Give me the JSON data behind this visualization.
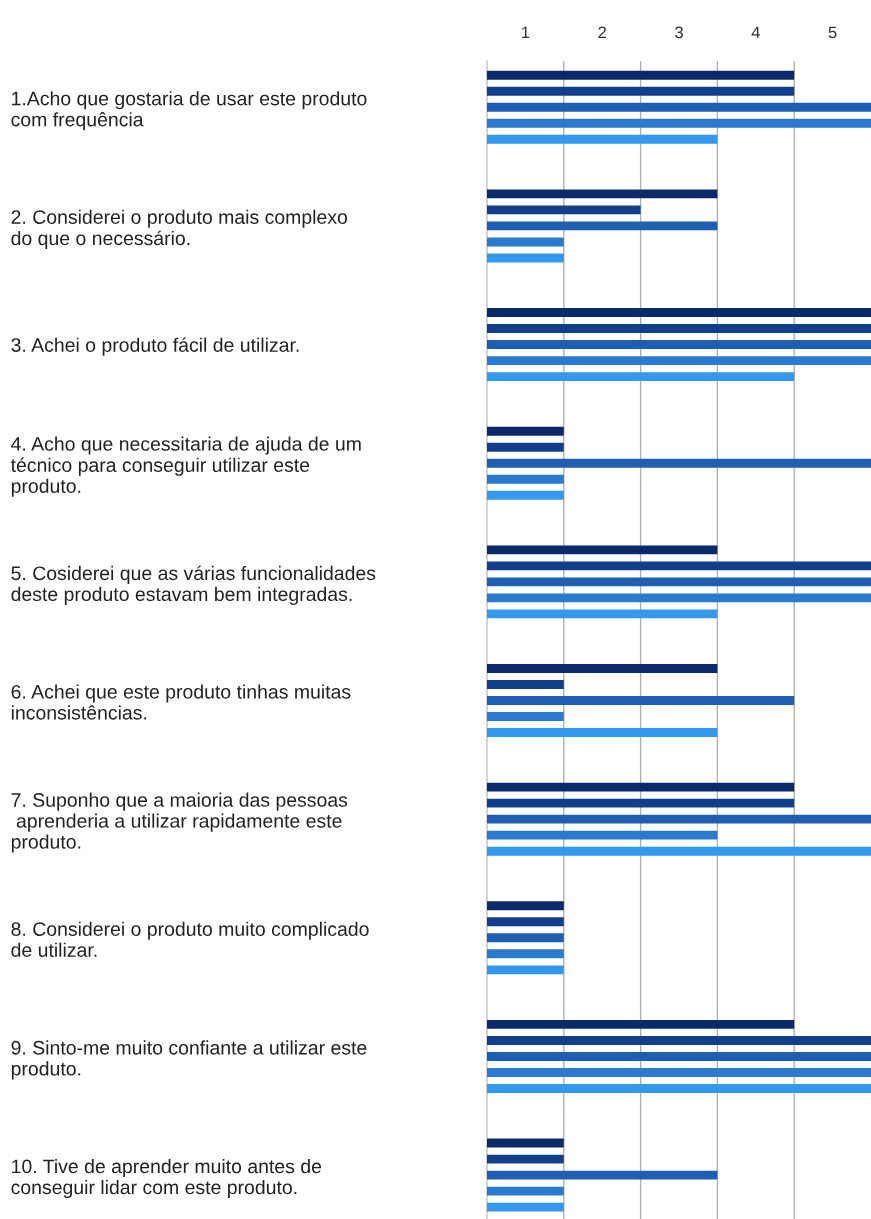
{
  "chart_data": {
    "type": "bar",
    "orientation": "horizontal",
    "categories": [
      "1.Acho que gostaria de usar este produto\ncom frequência",
      "2. Considerei o produto mais complexo\ndo que o necessário.",
      "3. Achei o produto fácil de utilizar.",
      "4. Acho que necessitaria de ajuda de um\ntécnico para conseguir utilizar este\nproduto.",
      "5. Cosiderei que as várias funcionalidades\ndeste produto estavam bem integradas.",
      "6. Achei que este produto tinhas muitas\ninconsistências.",
      "7. Suponho que a maioria das pessoas\n aprenderia a utilizar rapidamente este\nproduto.",
      "8. Considerei o produto muito complicado\nde utilizar.",
      "9. Sinto-me muito confiante a utilizar este\nproduto.",
      "10. Tive de aprender muito antes de\nconseguir lidar com este produto."
    ],
    "series": [
      {
        "color": "#0b2a6b",
        "values": [
          4,
          3,
          5,
          1,
          3,
          3,
          4,
          1,
          4,
          1
        ]
      },
      {
        "color": "#123f8c",
        "values": [
          4,
          2,
          5,
          1,
          5,
          1,
          4,
          1,
          5,
          1
        ]
      },
      {
        "color": "#1f5fb3",
        "values": [
          5,
          3,
          5,
          5,
          5,
          4,
          5,
          1,
          5,
          3
        ]
      },
      {
        "color": "#2a7ad0",
        "values": [
          5,
          1,
          5,
          1,
          5,
          1,
          3,
          1,
          5,
          1
        ]
      },
      {
        "color": "#3399ee",
        "values": [
          3,
          1,
          4,
          1,
          3,
          3,
          5,
          1,
          5,
          1
        ]
      }
    ],
    "xlim": [
      0,
      5
    ],
    "xticks": [
      {
        "value": 0.5,
        "label": "1"
      },
      {
        "value": 1,
        "label": null
      },
      {
        "value": 1.5,
        "label": "2"
      },
      {
        "value": 2,
        "label": null
      },
      {
        "value": 2.5,
        "label": "3"
      },
      {
        "value": 3,
        "label": null
      },
      {
        "value": 3.5,
        "label": "4"
      },
      {
        "value": 4,
        "label": null
      },
      {
        "value": 4.5,
        "label": "5"
      }
    ],
    "grid": "x",
    "legend": false
  }
}
